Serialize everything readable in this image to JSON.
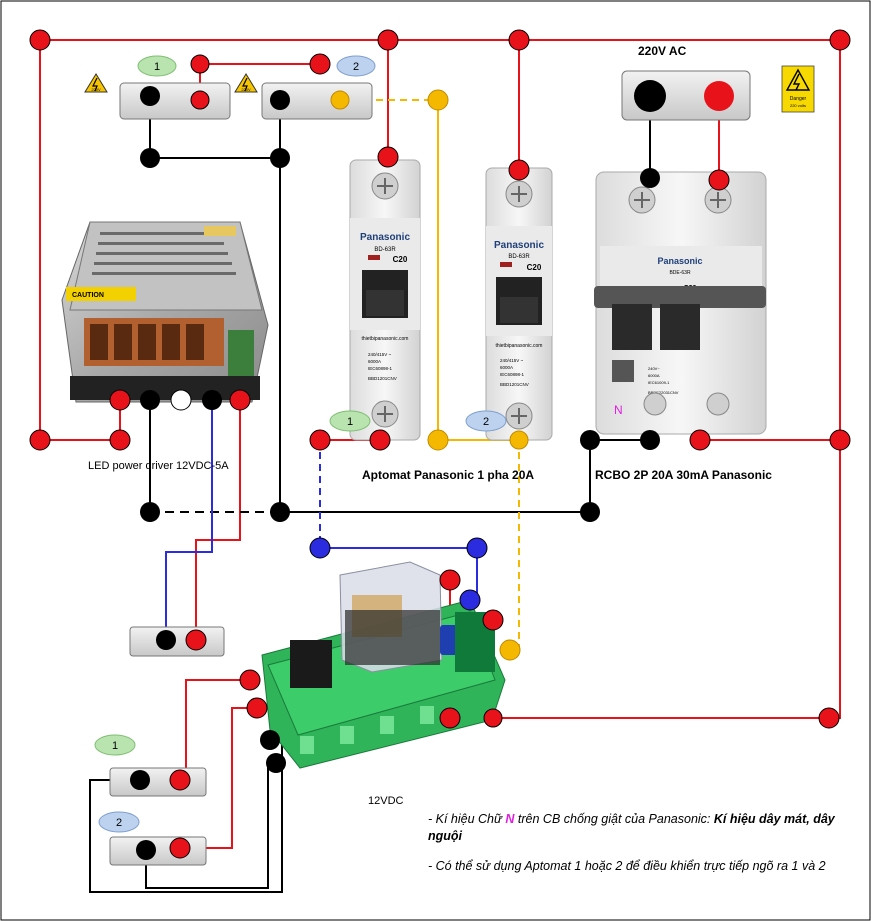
{
  "diagram": {
    "title_ac": "220V AC",
    "driver_label": "LED power driver 12VDC-5A",
    "aptomat_label": "Aptomat Panasonic 1 pha 20A",
    "rcbo_label": "RCBO 2P 20A 30mA Panasonic",
    "relay_label": "12VDC",
    "n_mark": "N",
    "badges": [
      "1",
      "2",
      "1",
      "2",
      "1",
      "2"
    ],
    "warn_220": "220V",
    "danger_sign": {
      "line1": "Danger",
      "line2": "220 volts"
    },
    "caution": "CAUTION",
    "breaker_brand": "Panasonic",
    "breaker_model": "BD-63R",
    "breaker_rating": "C20",
    "breaker_site": "thietbipanasonic.com",
    "breaker_spec": [
      "240/415V ~",
      "6000A",
      "IEC60898-1",
      "BBD1201CNV"
    ],
    "rcbo_model": "BDE-63R",
    "rcbo_spec": [
      "240V~",
      "6000A",
      "IEC61009-1",
      "BBDE22031CNV"
    ],
    "notes": {
      "n1_pre": "- Kí hiệu Chữ ",
      "n1_n": "N",
      "n1_mid": " trên CB chống giật của Panasonic: ",
      "n1_bold": "Kí hiệu dây mát, dây nguội",
      "n2": "- Có thể sử dụng Aptomat 1  hoặc 2 để điều khiển trực tiếp ngõ ra 1 và 2"
    }
  },
  "colors": {
    "live": "#e8121b",
    "neutral": "#000000",
    "signal_yellow": "#f5b800",
    "signal_blue": "#2b2be0",
    "badge_green": "#b9e4b0",
    "badge_blue": "#bcd2ef",
    "relay_green": "#2fb45a",
    "accent_n": "#e020e0"
  }
}
